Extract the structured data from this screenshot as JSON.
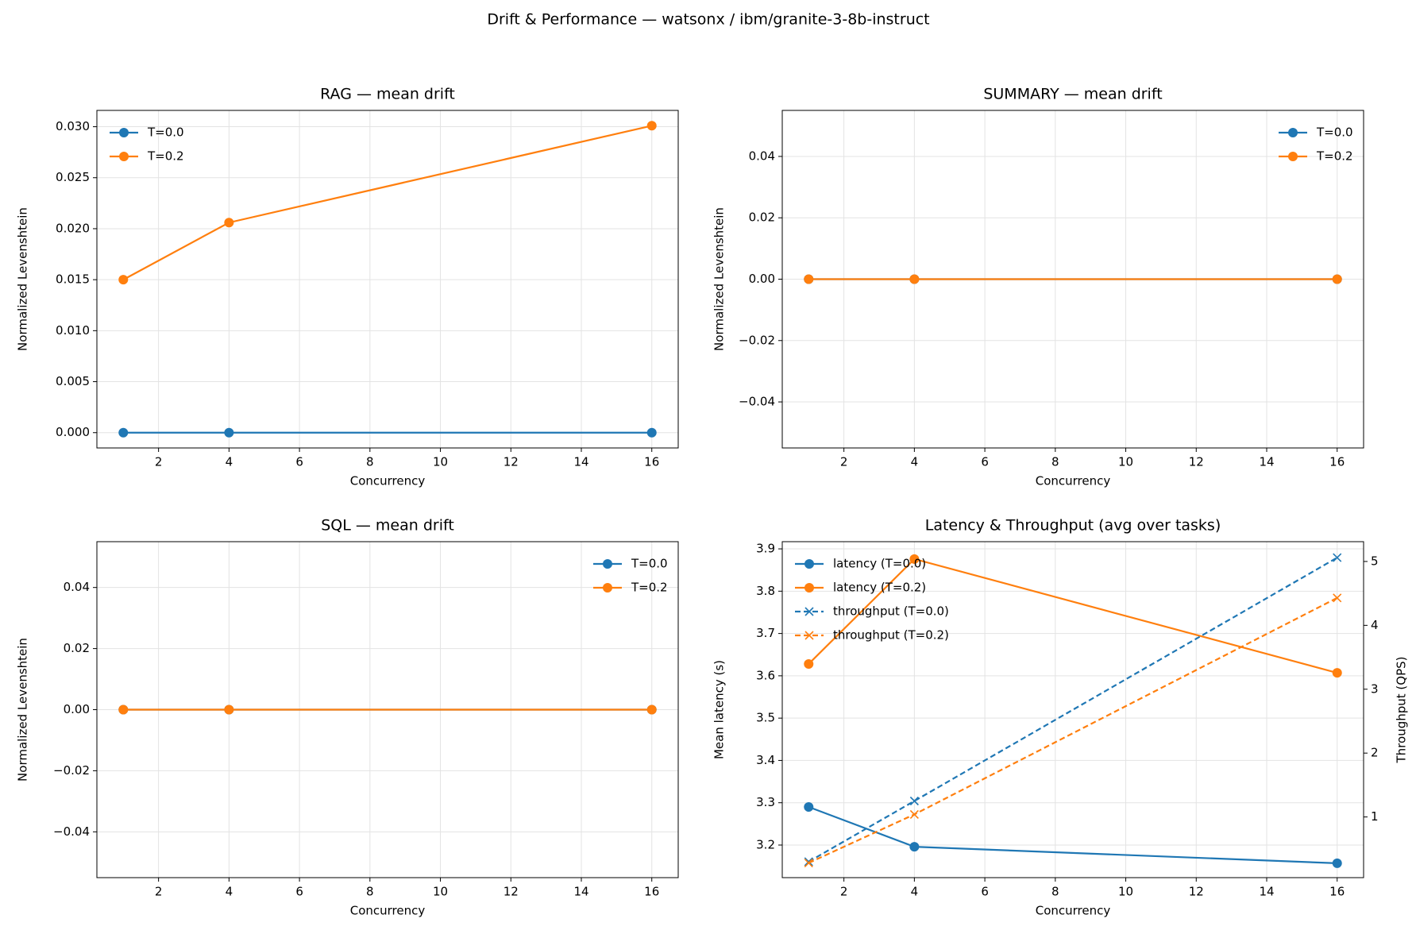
{
  "figure_title": "Drift & Performance — watsonx / ibm/granite-3-8b-instruct",
  "chart_data": [
    {
      "type": "line",
      "title": "RAG — mean drift",
      "x_label": "Concurrency",
      "y_label": "Normalized Levenshtein",
      "x": [
        1,
        4,
        16
      ],
      "xlim": [
        0.25,
        16.75
      ],
      "xticks": [
        2,
        4,
        6,
        8,
        10,
        12,
        14,
        16
      ],
      "ylim": [
        -0.0015,
        0.0316
      ],
      "yticks": [
        {
          "value": 0,
          "label": "0.000"
        },
        {
          "value": 0.005,
          "label": "0.005"
        },
        {
          "value": 0.01,
          "label": "0.010"
        },
        {
          "value": 0.015,
          "label": "0.015"
        },
        {
          "value": 0.02,
          "label": "0.020"
        },
        {
          "value": 0.025,
          "label": "0.025"
        },
        {
          "value": 0.03,
          "label": "0.030"
        }
      ],
      "grid": true,
      "legend": "upper-left",
      "series": [
        {
          "name": "T=0.0",
          "color": "#1f77b4",
          "marker": "circle",
          "linestyle": "solid",
          "values": [
            0,
            0,
            0
          ]
        },
        {
          "name": "T=0.2",
          "color": "#ff7f0e",
          "marker": "circle",
          "linestyle": "solid",
          "values": [
            0.015,
            0.0206,
            0.0301
          ]
        }
      ]
    },
    {
      "type": "line",
      "title": "SUMMARY — mean drift",
      "x_label": "Concurrency",
      "y_label": "Normalized Levenshtein",
      "x": [
        1,
        4,
        16
      ],
      "xlim": [
        0.25,
        16.75
      ],
      "xticks": [
        2,
        4,
        6,
        8,
        10,
        12,
        14,
        16
      ],
      "ylim": [
        -0.055,
        0.055
      ],
      "yticks": [
        {
          "value": -0.04,
          "label": "−0.04"
        },
        {
          "value": -0.02,
          "label": "−0.02"
        },
        {
          "value": 0,
          "label": "0.00"
        },
        0.02,
        0.04
      ],
      "grid": true,
      "legend": "upper-right",
      "series": [
        {
          "name": "T=0.0",
          "color": "#1f77b4",
          "marker": "circle",
          "linestyle": "solid",
          "values": [
            0,
            0,
            0
          ]
        },
        {
          "name": "T=0.2",
          "color": "#ff7f0e",
          "marker": "circle",
          "linestyle": "solid",
          "values": [
            0,
            0,
            0
          ]
        }
      ]
    },
    {
      "type": "line",
      "title": "SQL — mean drift",
      "x_label": "Concurrency",
      "y_label": "Normalized Levenshtein",
      "x": [
        1,
        4,
        16
      ],
      "xlim": [
        0.25,
        16.75
      ],
      "xticks": [
        2,
        4,
        6,
        8,
        10,
        12,
        14,
        16
      ],
      "ylim": [
        -0.055,
        0.055
      ],
      "yticks": [
        {
          "value": -0.04,
          "label": "−0.04"
        },
        {
          "value": -0.02,
          "label": "−0.02"
        },
        {
          "value": 0,
          "label": "0.00"
        },
        0.02,
        0.04
      ],
      "grid": true,
      "legend": "upper-right",
      "series": [
        {
          "name": "T=0.0",
          "color": "#1f77b4",
          "marker": "circle",
          "linestyle": "solid",
          "values": [
            0,
            0,
            0
          ]
        },
        {
          "name": "T=0.2",
          "color": "#ff7f0e",
          "marker": "circle",
          "linestyle": "solid",
          "values": [
            0,
            0,
            0
          ]
        }
      ]
    },
    {
      "type": "line",
      "title": "Latency & Throughput (avg over tasks)",
      "x_label": "Concurrency",
      "y_label": "Mean latency (s)",
      "y2_label": "Throughput (QPS)",
      "x": [
        1,
        4,
        16
      ],
      "xlim": [
        0.25,
        16.75
      ],
      "xticks": [
        2,
        4,
        6,
        8,
        10,
        12,
        14,
        16
      ],
      "ylim": [
        3.123,
        3.917
      ],
      "yticks": [
        3.2,
        3.3,
        3.4,
        3.5,
        3.6,
        3.7,
        3.8,
        3.9
      ],
      "y2lim": [
        0.05,
        5.31
      ],
      "y2ticks": [
        1,
        2,
        3,
        4,
        5
      ],
      "grid": true,
      "legend": "upper-left",
      "series": [
        {
          "name": "latency (T=0.0)",
          "color": "#1f77b4",
          "marker": "circle",
          "linestyle": "solid",
          "values": [
            3.29,
            3.196,
            3.157
          ]
        },
        {
          "name": "latency (T=0.2)",
          "color": "#ff7f0e",
          "marker": "circle",
          "linestyle": "solid",
          "values": [
            3.628,
            3.876,
            3.607
          ]
        },
        {
          "name": "throughput (T=0.0)",
          "color": "#1f77b4",
          "marker": "x",
          "linestyle": "dashed",
          "axis": "y2",
          "values": [
            0.3,
            1.25,
            5.06
          ]
        },
        {
          "name": "throughput (T=0.2)",
          "color": "#ff7f0e",
          "marker": "x",
          "linestyle": "dashed",
          "axis": "y2",
          "values": [
            0.28,
            1.04,
            4.43
          ]
        }
      ]
    }
  ]
}
